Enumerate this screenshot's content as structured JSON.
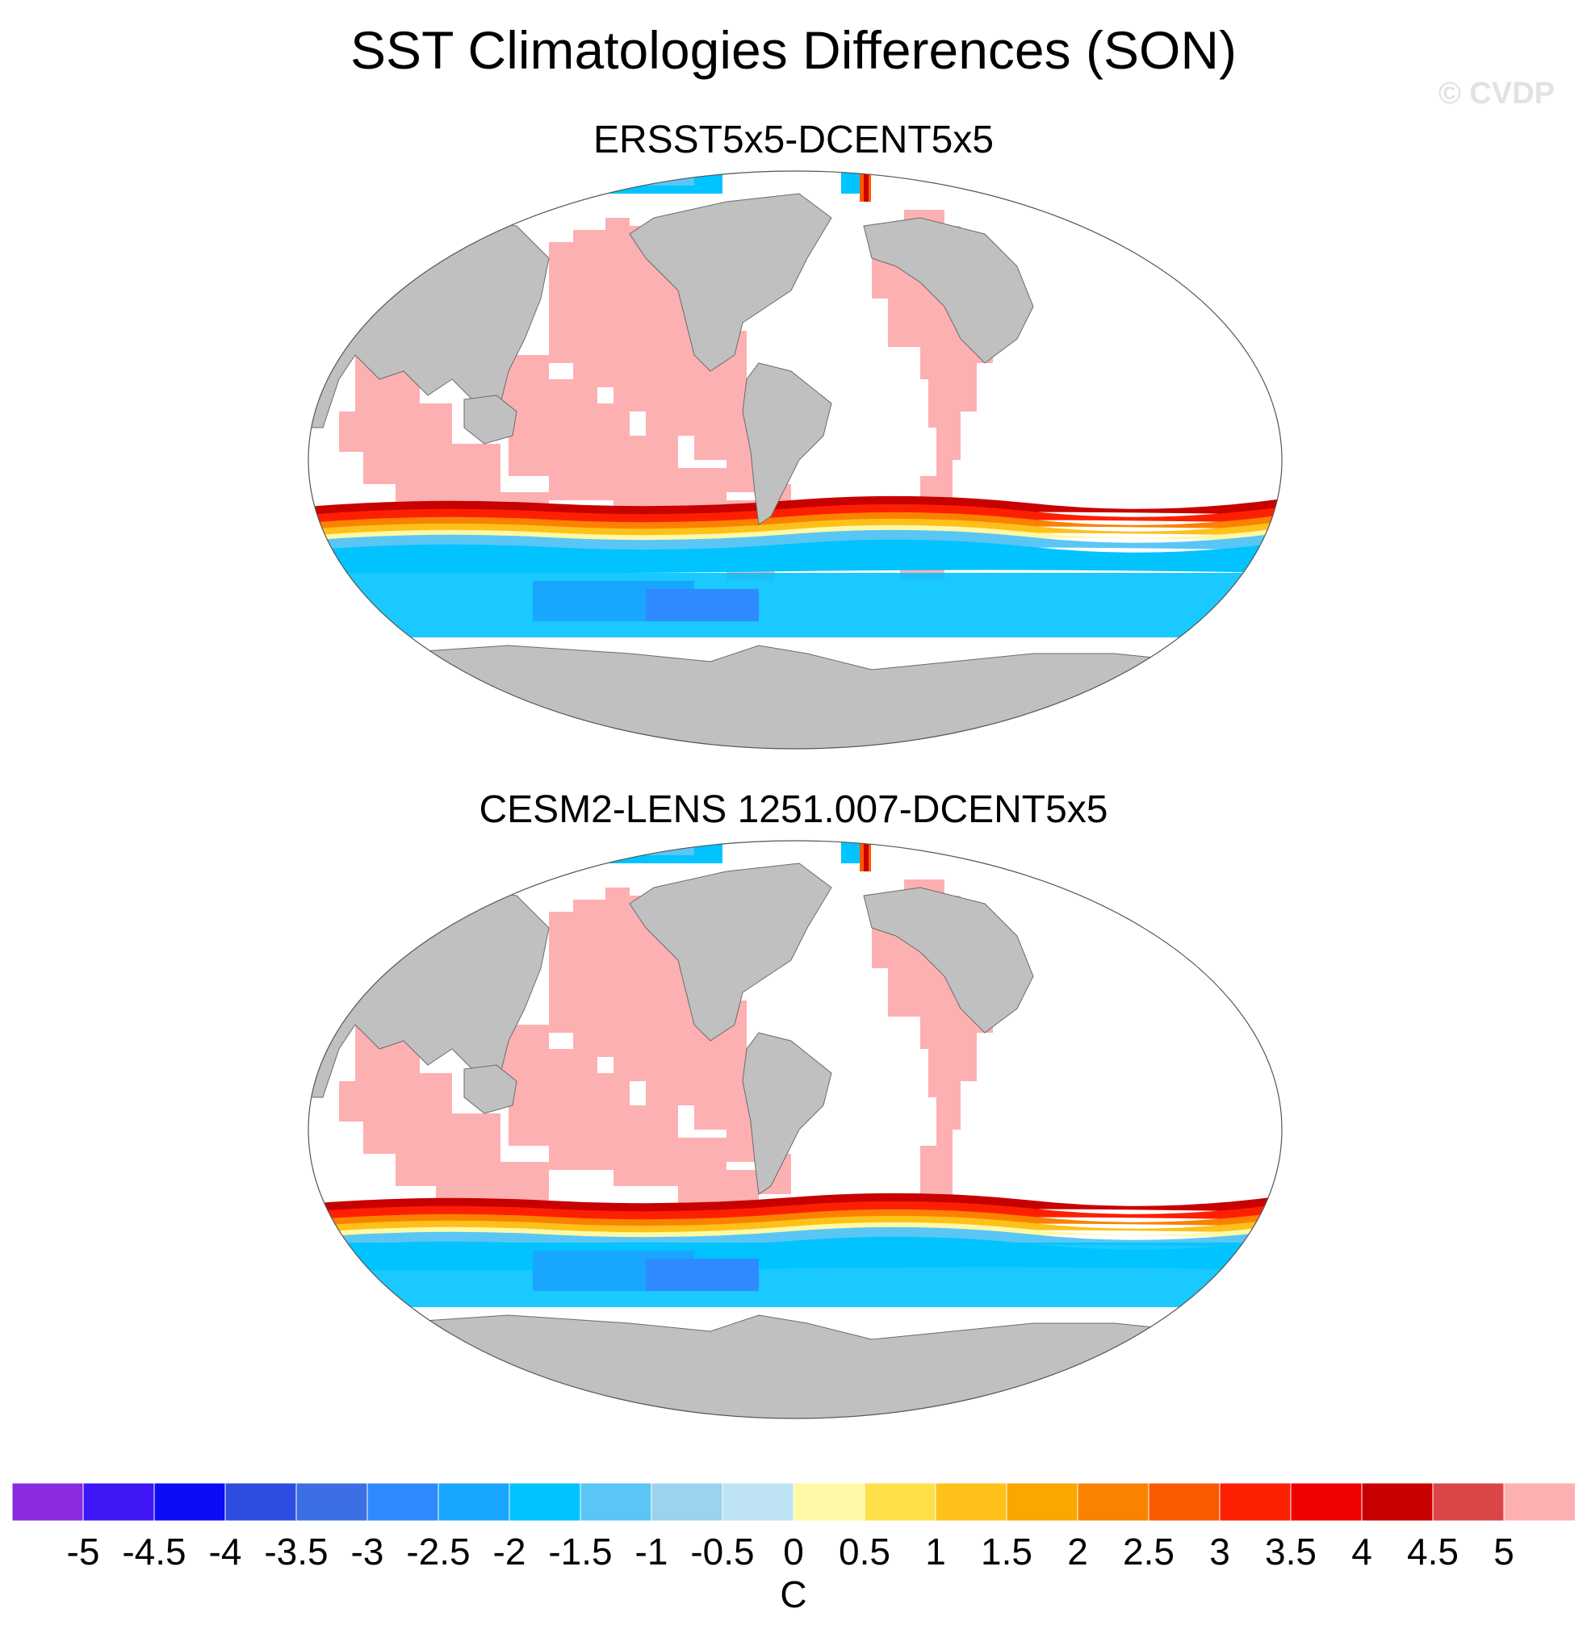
{
  "title": "SST Climatologies Differences (SON)",
  "watermark": "© CVDP",
  "panels": [
    {
      "title": "ERSST5x5-DCENT5x5"
    },
    {
      "title": "CESM2-LENS 1251.007-DCENT5x5"
    }
  ],
  "colorbar": {
    "units": "C",
    "labels": [
      "-5",
      "-4.5",
      "-4",
      "-3.5",
      "-3",
      "-2.5",
      "-2",
      "-1.5",
      "-1",
      "-0.5",
      "0",
      "0.5",
      "1",
      "1.5",
      "2",
      "2.5",
      "3",
      "3.5",
      "4",
      "4.5",
      "5"
    ],
    "colors": [
      "#8a2be2",
      "#3f16f5",
      "#0c0cf5",
      "#2e4ce0",
      "#3c6fe4",
      "#2f8aff",
      "#18a6ff",
      "#00c3ff",
      "#5ac6f5",
      "#9bd2ee",
      "#bde3f4",
      "#fff9a6",
      "#ffe04a",
      "#fdc11a",
      "#fca600",
      "#fb8200",
      "#fb5a00",
      "#fd2000",
      "#f00000",
      "#c80000",
      "#dc4545",
      "#fdb0b2"
    ]
  },
  "palette": {
    "land": "#c0c0c0",
    "ocean_fill": "#fdb0b2",
    "missing": "#ffffff"
  }
}
